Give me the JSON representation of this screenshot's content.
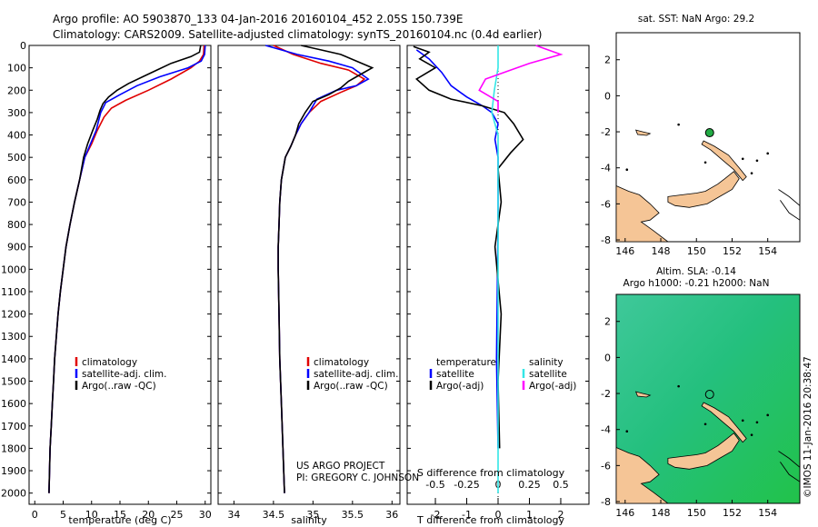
{
  "header": {
    "title_line1": "Argo profile: AO 5903870_133 04-Jan-2016 20160104_452 2.05S 150.739E",
    "title_line2": "Climatology: CARS2009. Satellite-adjusted climatology: synTS_20160104.nc (0.4d earlier)"
  },
  "colors": {
    "climatology": "#e00000",
    "satellite": "#0000ff",
    "argo": "#000000",
    "sal_satellite": "#33e6e6",
    "sal_argo": "#ff00ff"
  },
  "chart_data": [
    {
      "id": "temperature",
      "type": "line",
      "xlabel": "temperature (deg C)",
      "xlim": [
        -1,
        31
      ],
      "xticks": [
        0,
        5,
        10,
        15,
        20,
        25,
        30
      ],
      "ylim": [
        2050,
        0
      ],
      "yticks": [
        0,
        100,
        200,
        300,
        400,
        500,
        600,
        700,
        800,
        900,
        1000,
        1100,
        1200,
        1300,
        1400,
        1500,
        1600,
        1700,
        1800,
        1900,
        2000
      ],
      "legend": [
        "climatology",
        "satellite-adj. clim.",
        "Argo(..raw -QC)"
      ],
      "series": [
        {
          "name": "climatology",
          "color": "#e00000",
          "points": [
            [
              29.8,
              0
            ],
            [
              29.7,
              40
            ],
            [
              29.0,
              70
            ],
            [
              27.5,
              100
            ],
            [
              24.0,
              150
            ],
            [
              20.0,
              200
            ],
            [
              16.0,
              245
            ],
            [
              13.5,
              280
            ],
            [
              12.2,
              320
            ],
            [
              11.0,
              380
            ],
            [
              10.0,
              440
            ],
            [
              8.8,
              500
            ],
            [
              7.9,
              600
            ],
            [
              7.0,
              700
            ],
            [
              6.2,
              800
            ],
            [
              5.5,
              900
            ],
            [
              5.0,
              1000
            ],
            [
              4.5,
              1100
            ],
            [
              4.1,
              1200
            ],
            [
              3.8,
              1300
            ],
            [
              3.5,
              1400
            ],
            [
              3.3,
              1500
            ],
            [
              3.1,
              1600
            ],
            [
              2.9,
              1700
            ],
            [
              2.7,
              1800
            ],
            [
              2.6,
              1900
            ],
            [
              2.5,
              2000
            ]
          ]
        },
        {
          "name": "satellite-adj. clim.",
          "color": "#0000ff",
          "points": [
            [
              30.0,
              0
            ],
            [
              29.9,
              40
            ],
            [
              29.3,
              70
            ],
            [
              27.0,
              100
            ],
            [
              22.0,
              140
            ],
            [
              18.0,
              180
            ],
            [
              15.0,
              220
            ],
            [
              12.5,
              255
            ],
            [
              11.6,
              300
            ],
            [
              10.8,
              380
            ],
            [
              9.8,
              440
            ],
            [
              8.8,
              500
            ],
            [
              7.9,
              600
            ],
            [
              7.0,
              700
            ],
            [
              6.2,
              800
            ],
            [
              5.5,
              900
            ],
            [
              5.0,
              1000
            ],
            [
              4.5,
              1100
            ],
            [
              4.1,
              1200
            ],
            [
              3.8,
              1300
            ],
            [
              3.5,
              1400
            ],
            [
              3.3,
              1500
            ],
            [
              3.1,
              1600
            ],
            [
              2.9,
              1700
            ],
            [
              2.7,
              1800
            ],
            [
              2.6,
              1900
            ],
            [
              2.5,
              2000
            ]
          ]
        },
        {
          "name": "Argo(..raw -QC)",
          "color": "#000000",
          "points": [
            [
              29.2,
              0
            ],
            [
              29.0,
              30
            ],
            [
              27.5,
              50
            ],
            [
              24.0,
              80
            ],
            [
              21.5,
              110
            ],
            [
              19.0,
              140
            ],
            [
              16.5,
              170
            ],
            [
              14.5,
              200
            ],
            [
              13.0,
              230
            ],
            [
              12.0,
              260
            ],
            [
              11.5,
              290
            ],
            [
              11.0,
              330
            ],
            [
              10.2,
              380
            ],
            [
              9.3,
              440
            ],
            [
              8.6,
              500
            ],
            [
              7.9,
              600
            ],
            [
              7.0,
              700
            ],
            [
              6.2,
              800
            ],
            [
              5.5,
              900
            ],
            [
              5.0,
              1000
            ],
            [
              4.5,
              1100
            ],
            [
              4.1,
              1200
            ],
            [
              3.8,
              1300
            ],
            [
              3.5,
              1400
            ],
            [
              3.3,
              1500
            ],
            [
              3.1,
              1600
            ],
            [
              2.9,
              1700
            ],
            [
              2.7,
              1800
            ],
            [
              2.6,
              1900
            ],
            [
              2.5,
              2000
            ]
          ]
        }
      ]
    },
    {
      "id": "salinity",
      "type": "line",
      "xlabel": "salinity",
      "xlim": [
        33.8,
        36.1
      ],
      "xticks": [
        34,
        34.5,
        35,
        35.5,
        36
      ],
      "xtick_labels": [
        "34",
        "34.5",
        "35",
        "35.5",
        "36"
      ],
      "ylim": [
        2050,
        0
      ],
      "legend": [
        "climatology",
        "satellite-adj. clim.",
        "Argo(..raw -QC)"
      ],
      "series": [
        {
          "name": "climatology",
          "color": "#e00000",
          "points": [
            [
              34.5,
              0
            ],
            [
              34.75,
              40
            ],
            [
              35.1,
              80
            ],
            [
              35.45,
              110
            ],
            [
              35.65,
              150
            ],
            [
              35.55,
              180
            ],
            [
              35.35,
              210
            ],
            [
              35.1,
              250
            ],
            [
              34.95,
              300
            ],
            [
              34.85,
              350
            ],
            [
              34.78,
              400
            ],
            [
              34.72,
              450
            ],
            [
              34.65,
              500
            ],
            [
              34.6,
              600
            ],
            [
              34.58,
              700
            ],
            [
              34.57,
              800
            ],
            [
              34.56,
              900
            ],
            [
              34.56,
              1000
            ],
            [
              34.57,
              1200
            ],
            [
              34.58,
              1400
            ],
            [
              34.6,
              1600
            ],
            [
              34.62,
              1800
            ],
            [
              34.64,
              2000
            ]
          ]
        },
        {
          "name": "satellite-adj. clim.",
          "color": "#0000ff",
          "points": [
            [
              34.4,
              0
            ],
            [
              34.8,
              40
            ],
            [
              35.2,
              70
            ],
            [
              35.5,
              100
            ],
            [
              35.7,
              150
            ],
            [
              35.55,
              180
            ],
            [
              35.3,
              200
            ],
            [
              35.05,
              240
            ],
            [
              34.95,
              300
            ],
            [
              34.85,
              350
            ],
            [
              34.78,
              400
            ],
            [
              34.72,
              450
            ],
            [
              34.65,
              500
            ],
            [
              34.6,
              600
            ],
            [
              34.58,
              700
            ],
            [
              34.57,
              800
            ],
            [
              34.56,
              900
            ],
            [
              34.56,
              1000
            ],
            [
              34.57,
              1200
            ],
            [
              34.58,
              1400
            ],
            [
              34.6,
              1600
            ],
            [
              34.62,
              1800
            ],
            [
              34.64,
              2000
            ]
          ]
        },
        {
          "name": "Argo(..raw -QC)",
          "color": "#000000",
          "points": [
            [
              34.85,
              0
            ],
            [
              35.1,
              20
            ],
            [
              35.35,
              40
            ],
            [
              35.55,
              70
            ],
            [
              35.75,
              100
            ],
            [
              35.6,
              130
            ],
            [
              35.45,
              160
            ],
            [
              35.35,
              190
            ],
            [
              35.2,
              220
            ],
            [
              35.0,
              250
            ],
            [
              34.9,
              300
            ],
            [
              34.82,
              350
            ],
            [
              34.78,
              400
            ],
            [
              34.72,
              450
            ],
            [
              34.65,
              500
            ],
            [
              34.6,
              600
            ],
            [
              34.58,
              700
            ],
            [
              34.57,
              800
            ],
            [
              34.56,
              900
            ],
            [
              34.56,
              1000
            ],
            [
              34.57,
              1200
            ],
            [
              34.58,
              1400
            ],
            [
              34.6,
              1600
            ],
            [
              34.62,
              1800
            ],
            [
              34.64,
              2000
            ]
          ]
        }
      ],
      "annotations": [
        "US ARGO PROJECT",
        "PI: GREGORY C. JOHNSON"
      ]
    },
    {
      "id": "differences",
      "type": "line",
      "xlabel_top": "S difference from climatology",
      "xlabel": "T difference from climatology",
      "t_xlim": [
        -2.9,
        2.9
      ],
      "t_xticks": [
        -2,
        -1,
        0,
        1,
        2
      ],
      "s_xlim": [
        -0.725,
        0.725
      ],
      "s_xticks": [
        -0.5,
        -0.25,
        0,
        0.25,
        0.5
      ],
      "s_xtick_labels": [
        "-0.5",
        "-0.25",
        "0",
        "0.25",
        "0.5"
      ],
      "ylim": [
        2050,
        0
      ],
      "legend_temperature": {
        "title": "temperature",
        "items": [
          "satellite",
          "Argo(-adj)"
        ]
      },
      "legend_salinity": {
        "title": "salinity",
        "items": [
          "satellite",
          "Argo(-adj)"
        ]
      },
      "series": [
        {
          "name": "temperature satellite",
          "axis": "T",
          "color": "#0000ff",
          "points": [
            [
              -2.6,
              20
            ],
            [
              -2.2,
              60
            ],
            [
              -1.8,
              120
            ],
            [
              -1.5,
              180
            ],
            [
              -1.0,
              230
            ],
            [
              -0.5,
              270
            ],
            [
              -0.2,
              300
            ],
            [
              0.0,
              350
            ],
            [
              -0.1,
              420
            ],
            [
              0.0,
              500
            ],
            [
              0.0,
              800
            ],
            [
              -0.05,
              1400
            ],
            [
              0.0,
              1800
            ]
          ]
        },
        {
          "name": "temperature Argo(-adj)",
          "axis": "T",
          "color": "#000000",
          "points": [
            [
              -2.7,
              5
            ],
            [
              -2.2,
              30
            ],
            [
              -2.5,
              60
            ],
            [
              -2.0,
              100
            ],
            [
              -2.6,
              150
            ],
            [
              -2.2,
              200
            ],
            [
              -1.5,
              240
            ],
            [
              -0.5,
              270
            ],
            [
              0.2,
              300
            ],
            [
              0.5,
              350
            ],
            [
              0.8,
              420
            ],
            [
              0.4,
              480
            ],
            [
              0.0,
              550
            ],
            [
              0.1,
              700
            ],
            [
              -0.1,
              900
            ],
            [
              0.1,
              1200
            ],
            [
              0.0,
              1500
            ],
            [
              0.05,
              1800
            ]
          ]
        },
        {
          "name": "salinity satellite",
          "axis": "S",
          "color": "#33e6e6",
          "points": [
            [
              0.0,
              0
            ],
            [
              0.0,
              100
            ],
            [
              -0.03,
              200
            ],
            [
              -0.05,
              300
            ],
            [
              0.0,
              400
            ],
            [
              0.0,
              2000
            ]
          ]
        },
        {
          "name": "salinity Argo(-adj)",
          "axis": "S",
          "color": "#ff00ff",
          "points": [
            [
              0.3,
              0
            ],
            [
              0.5,
              40
            ],
            [
              0.25,
              80
            ],
            [
              0.1,
              110
            ],
            [
              -0.1,
              150
            ],
            [
              -0.15,
              200
            ],
            [
              0.0,
              250
            ],
            [
              0.0,
              300
            ]
          ]
        }
      ]
    }
  ],
  "maps": {
    "sst": {
      "title": "sat. SST: NaN Argo: 29.2",
      "xticks": [
        "146",
        "148",
        "150",
        "152",
        "154"
      ],
      "yticks": [
        "2",
        "0",
        "-2",
        "-4",
        "-6",
        "-8"
      ]
    },
    "sla": {
      "title_line1": "Altim. SLA: -0.14",
      "title_line2": "Argo h1000: -0.21 h2000: NaN",
      "xticks": [
        "146",
        "148",
        "150",
        "152",
        "154"
      ],
      "yticks": [
        "2",
        "0",
        "-2",
        "-4",
        "-6",
        "-8"
      ]
    },
    "argo_position": {
      "lon": 150.739,
      "lat": -2.05
    },
    "lon_range": [
      145.5,
      155.8
    ],
    "lat_range": [
      -8.1,
      3.5
    ]
  },
  "footer": {
    "timestamp": "©IMOS 11-Jan-2016 20:38:47"
  }
}
